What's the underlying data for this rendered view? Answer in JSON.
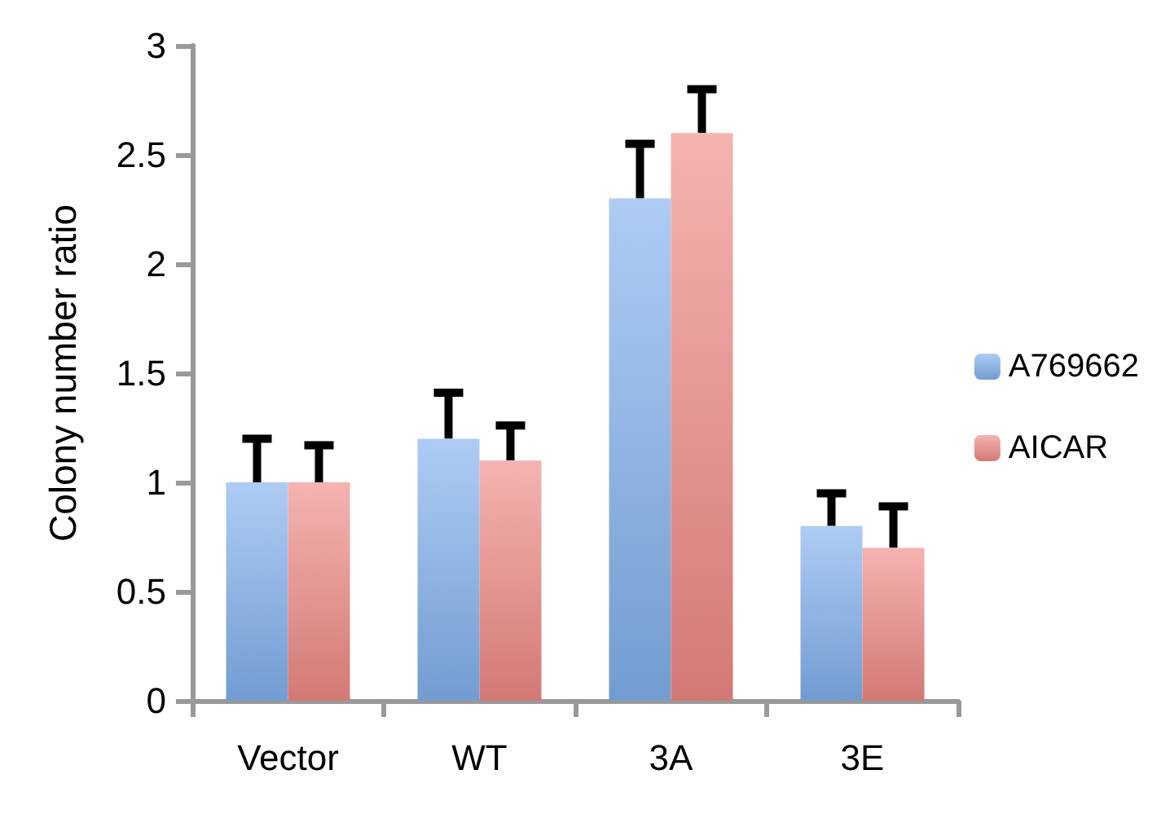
{
  "chart_data": {
    "type": "bar",
    "ylabel": "Colony number ratio",
    "categories": [
      "Vector",
      "WT",
      "3A",
      "3E"
    ],
    "series": [
      {
        "name": "A769662",
        "color": "#82b1ee",
        "values": [
          1.0,
          1.2,
          2.3,
          0.8
        ],
        "errors": [
          [
            1.0,
            1.2
          ],
          [
            1.2,
            1.41
          ],
          [
            2.3,
            2.55
          ],
          [
            0.8,
            0.95
          ]
        ]
      },
      {
        "name": "AICAR",
        "color": "#f08a85",
        "values": [
          1.0,
          1.1,
          2.6,
          0.7
        ],
        "errors": [
          [
            1.0,
            1.17
          ],
          [
            1.1,
            1.26
          ],
          [
            2.6,
            2.8
          ],
          [
            0.7,
            0.89
          ]
        ]
      }
    ],
    "ylim": [
      0,
      3
    ],
    "yticks": [
      0,
      0.5,
      1,
      1.5,
      2,
      2.5,
      3
    ],
    "grid": false,
    "legend": "right"
  }
}
